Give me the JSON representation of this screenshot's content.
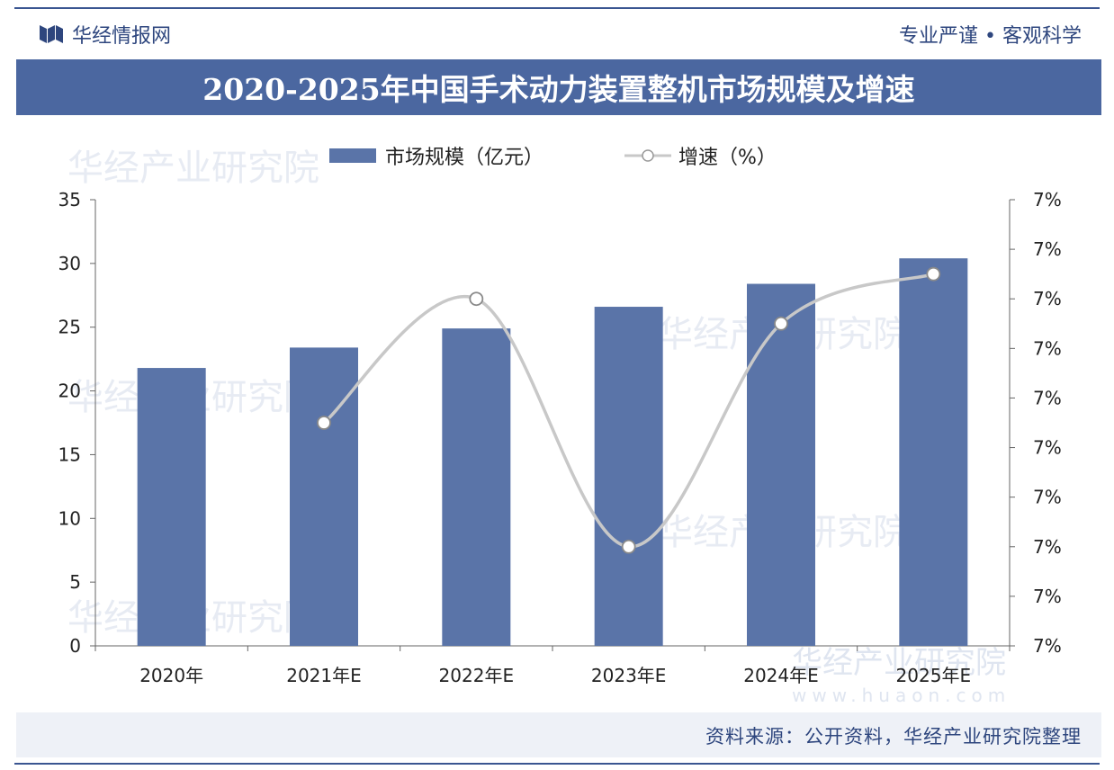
{
  "header": {
    "brand": "华经情报网",
    "slogan": "专业严谨 • 客观科学"
  },
  "title": "2020-2025年中国手术动力装置整机市场规模及增速",
  "legend": {
    "bar_label": "市场规模（亿元）",
    "line_label": "增速（%）"
  },
  "watermark": {
    "logo_text": "华经产业研究院",
    "url": "www.huaon.com"
  },
  "source": "资料来源：公开资料，华经产业研究院整理",
  "colors": {
    "bar": "#5a74a8",
    "line": "#c8c8c8",
    "title_bg": "#4b67a0",
    "text": "#2e467e"
  },
  "chart_data": {
    "type": "bar",
    "categories": [
      "2020年",
      "2021年E",
      "2022年E",
      "2023年E",
      "2024年E",
      "2025年E"
    ],
    "series": [
      {
        "name": "市场规模（亿元）",
        "type": "bar",
        "axis": "left",
        "values": [
          21.8,
          23.4,
          24.9,
          26.6,
          28.4,
          30.4
        ]
      },
      {
        "name": "增速（%）",
        "type": "line",
        "axis": "right",
        "values": [
          null,
          7.1,
          7.6,
          6.6,
          7.5,
          7.7
        ]
      }
    ],
    "y_left": {
      "ylim": [
        0,
        35
      ],
      "ticks": [
        "0",
        "5",
        "10",
        "15",
        "20",
        "25",
        "30",
        "35"
      ]
    },
    "y_right": {
      "ylim": [
        6.2,
        8.0
      ],
      "ticks": [
        "7%",
        "7%",
        "7%",
        "7%",
        "7%",
        "7%",
        "7%",
        "7%",
        "7%",
        "7%"
      ]
    },
    "legend_position": "top",
    "grid": false
  }
}
